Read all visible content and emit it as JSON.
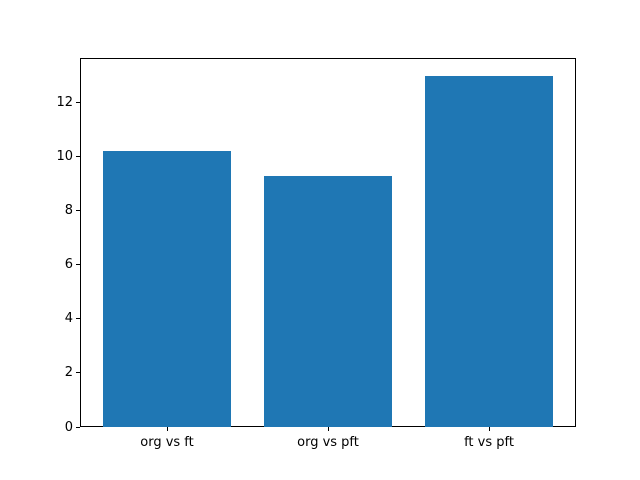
{
  "chart_data": {
    "type": "bar",
    "title": "",
    "xlabel": "",
    "ylabel": "",
    "categories": [
      "org vs ft",
      "org vs pft",
      "ft vs pft"
    ],
    "values": [
      10.2,
      9.3,
      13.0
    ],
    "yticks": [
      0,
      2,
      4,
      6,
      8,
      10,
      12
    ],
    "ytick_labels": [
      "0",
      "2",
      "4",
      "6",
      "8",
      "10",
      "12"
    ],
    "ylim": [
      0,
      13.65
    ],
    "xlim": [
      -0.54,
      2.54
    ],
    "bar_width": 0.8,
    "bar_color": "#1f77b4",
    "axis_color": "#000000",
    "background_color": "#ffffff",
    "grid": false,
    "legend": null
  }
}
